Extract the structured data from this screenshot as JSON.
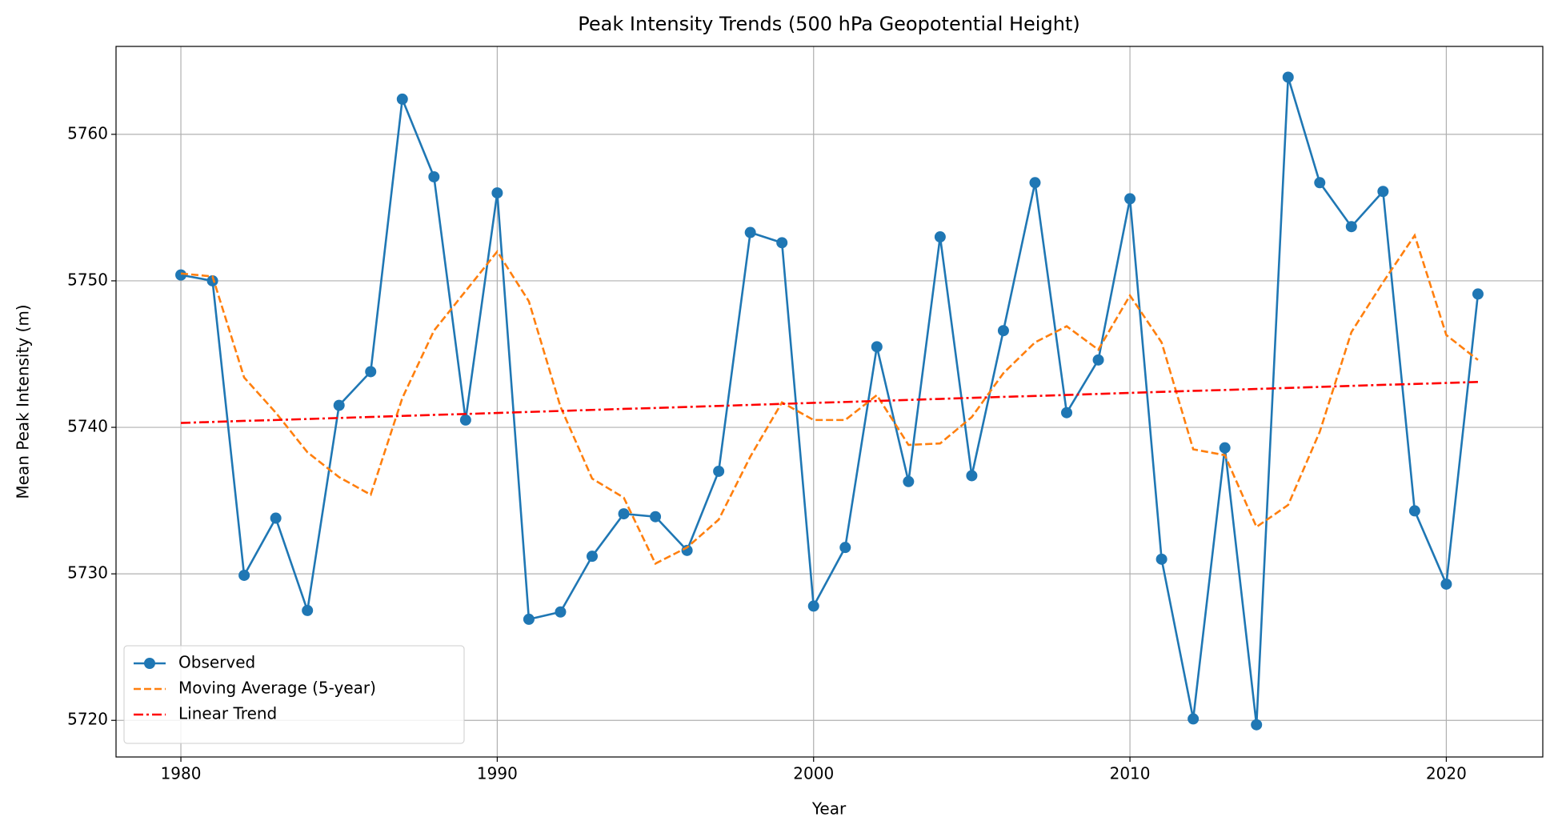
{
  "chart_data": {
    "type": "line",
    "title": "Peak Intensity Trends (500 hPa Geopotential Height)",
    "xlabel": "Year",
    "ylabel": "Mean Peak Intensity (m)",
    "x": [
      1980,
      1981,
      1982,
      1983,
      1984,
      1985,
      1986,
      1987,
      1988,
      1989,
      1990,
      1991,
      1992,
      1993,
      1994,
      1995,
      1996,
      1997,
      1998,
      1999,
      2000,
      2001,
      2002,
      2003,
      2004,
      2005,
      2006,
      2007,
      2008,
      2009,
      2010,
      2011,
      2012,
      2013,
      2014,
      2015,
      2016,
      2017,
      2018,
      2019,
      2020,
      2021
    ],
    "series": [
      {
        "name": "Observed",
        "color": "#1f77b4",
        "linestyle": "solid",
        "marker": "o",
        "values": [
          5750.4,
          5750.0,
          5729.9,
          5733.8,
          5727.5,
          5741.5,
          5743.8,
          5762.4,
          5757.1,
          5740.5,
          5756.0,
          5726.9,
          5727.4,
          5731.2,
          5734.1,
          5733.9,
          5731.6,
          5737.0,
          5753.3,
          5752.6,
          5727.8,
          5731.8,
          5745.5,
          5736.3,
          5753.0,
          5736.7,
          5746.6,
          5756.7,
          5741.0,
          5744.6,
          5755.6,
          5731.0,
          5720.1,
          5738.6,
          5719.7,
          5763.9,
          5756.7,
          5753.7,
          5756.1,
          5734.3,
          5729.3,
          5749.1
        ]
      },
      {
        "name": "Moving Average (5-year)",
        "color": "#ff7f0e",
        "linestyle": "dashed",
        "values": [
          5750.5,
          5750.3,
          5743.4,
          5741.0,
          5738.3,
          5736.6,
          5735.4,
          5742.0,
          5746.6,
          5749.3,
          5752.0,
          5748.6,
          5741.4,
          5736.5,
          5735.2,
          5730.7,
          5731.8,
          5733.7,
          5738.0,
          5741.7,
          5740.5,
          5740.5,
          5742.2,
          5738.8,
          5738.9,
          5740.7,
          5743.7,
          5745.8,
          5746.9,
          5745.3,
          5749.0,
          5745.8,
          5738.5,
          5738.1,
          5733.2,
          5734.7,
          5739.7,
          5746.5,
          5749.9,
          5753.1,
          5746.3,
          5744.6
        ]
      },
      {
        "name": "Linear Trend",
        "color": "#ff0000",
        "linestyle": "dashdot",
        "values": [
          5740.3,
          5740.37,
          5740.44,
          5740.5,
          5740.57,
          5740.64,
          5740.71,
          5740.78,
          5740.85,
          5740.91,
          5740.98,
          5741.05,
          5741.12,
          5741.19,
          5741.26,
          5741.32,
          5741.39,
          5741.46,
          5741.53,
          5741.6,
          5741.67,
          5741.73,
          5741.8,
          5741.87,
          5741.94,
          5742.01,
          5742.08,
          5742.14,
          5742.21,
          5742.28,
          5742.35,
          5742.42,
          5742.49,
          5742.55,
          5742.62,
          5742.69,
          5742.76,
          5742.83,
          5742.9,
          5742.96,
          5743.03,
          5743.1
        ]
      }
    ],
    "xlim": [
      1977.95,
      2023.05
    ],
    "xticks": [
      1980,
      1990,
      2000,
      2010,
      2020
    ],
    "ylim": [
      5717.5,
      5766.0
    ],
    "yticks": [
      5720,
      5730,
      5740,
      5750,
      5760
    ],
    "grid": true,
    "legend": "lower left"
  }
}
